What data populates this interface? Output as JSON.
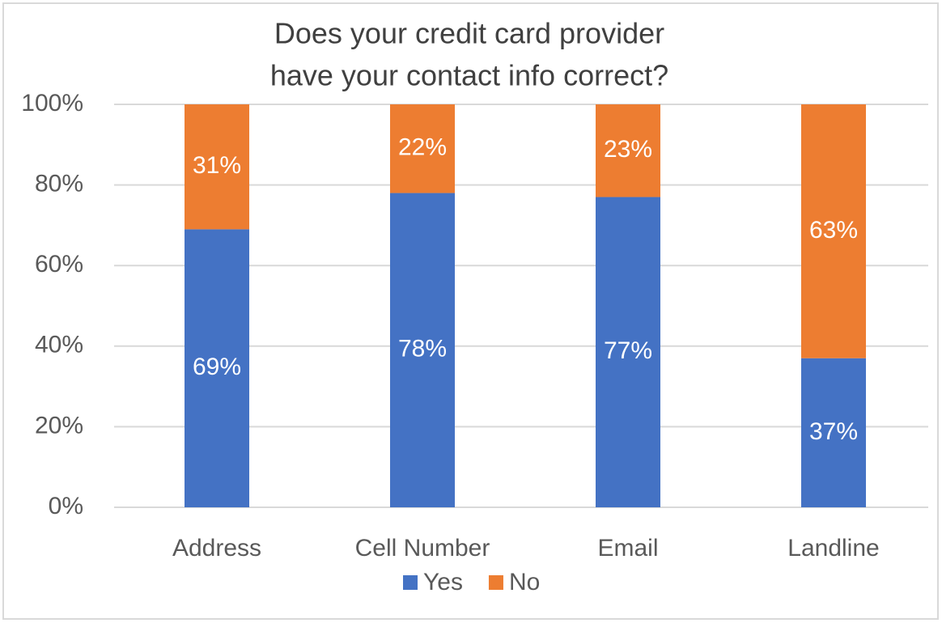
{
  "chart_data": {
    "type": "stacked_bar",
    "title": [
      "Does your credit card provider",
      "have your contact info correct?"
    ],
    "categories": [
      "Address",
      "Cell Number",
      "Email",
      "Landline"
    ],
    "series": [
      {
        "name": "Yes",
        "color": "#4472c4",
        "values": [
          69,
          78,
          77,
          37
        ],
        "value_labels": [
          "69%",
          "78%",
          "77%",
          "37%"
        ]
      },
      {
        "name": "No",
        "color": "#ed7d31",
        "values": [
          31,
          22,
          23,
          63
        ],
        "value_labels": [
          "31%",
          "22%",
          "23%",
          "63%"
        ]
      }
    ],
    "ylim": [
      0,
      100
    ],
    "yticks": [
      {
        "value": 0,
        "label": "0%"
      },
      {
        "value": 20,
        "label": "20%"
      },
      {
        "value": 40,
        "label": "40%"
      },
      {
        "value": 60,
        "label": "60%"
      },
      {
        "value": 80,
        "label": "80%"
      },
      {
        "value": 100,
        "label": "100%"
      }
    ],
    "grid": true,
    "legend": "bottom"
  }
}
